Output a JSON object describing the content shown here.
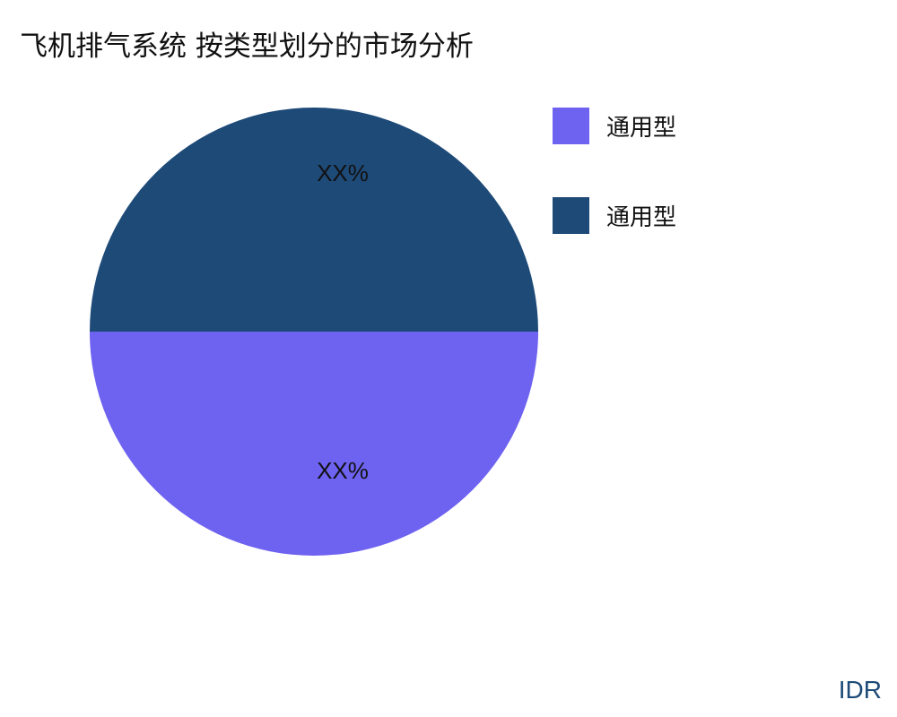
{
  "chart_data": {
    "type": "pie",
    "title": "飞机排气系统 按类型划分的市场分析",
    "slices": [
      {
        "label": "通用型",
        "value": 50,
        "display": "XX%",
        "color": "#6e62f0"
      },
      {
        "label": "通用型",
        "value": 50,
        "display": "XX%",
        "color": "#1e4a78"
      }
    ],
    "legend_position": "right"
  },
  "watermark": "IDR"
}
